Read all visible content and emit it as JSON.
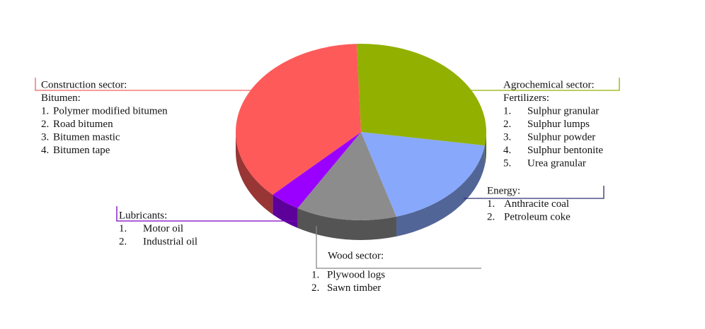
{
  "chart_data": {
    "type": "pie",
    "values": [
      28,
      18,
      13,
      4,
      37
    ],
    "colors": [
      "#92b000",
      "#88a8fb",
      "#8c8c8c",
      "#9a00ff",
      "#fe5a5a"
    ],
    "line_colors": [
      "#92b000",
      "#2a3170",
      "#888888",
      "#7a00c0",
      "#f06060"
    ],
    "labels": [
      {
        "title": "Agrochemical sector:",
        "subtitle": "Fertilizers:",
        "items": [
          {
            "num": "1.",
            "text": "Sulphur granular"
          },
          {
            "num": "2.",
            "text": "Sulphur lumps"
          },
          {
            "num": "3.",
            "text": "Sulphur powder"
          },
          {
            "num": "4.",
            "text": "Sulphur bentonite"
          },
          {
            "num": "5.",
            "text": "Urea granular"
          }
        ]
      },
      {
        "title": "Energy:",
        "items": [
          {
            "num": "1.",
            "text": "Anthracite coal"
          },
          {
            "num": "2.",
            "text": "Petroleum coke"
          }
        ]
      },
      {
        "title": "Wood sector:",
        "items": [
          {
            "num": "1.",
            "text": "Plywood logs"
          },
          {
            "num": "2.",
            "text": "Sawn timber"
          }
        ]
      },
      {
        "title": "Lubricants:",
        "items": [
          {
            "num": "1.",
            "text": "Motor oil"
          },
          {
            "num": "2.",
            "text": "Industrial oil"
          }
        ]
      },
      {
        "title": "Construction sector:",
        "subtitle": "Bitumen:",
        "items": [
          {
            "num": "1.",
            "text": "Polymer modified bitumen"
          },
          {
            "num": "2.",
            "text": "Road bitumen"
          },
          {
            "num": "3.",
            "text": "Bitumen mastic"
          },
          {
            "num": "4.",
            "text": "Bitumen tape"
          }
        ]
      }
    ]
  }
}
